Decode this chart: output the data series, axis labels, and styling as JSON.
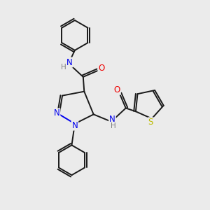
{
  "bg_color": "#ebebeb",
  "bond_color": "#1a1a1a",
  "N_color": "#0000ee",
  "O_color": "#ee0000",
  "S_color": "#bbbb00",
  "H_color": "#808080",
  "linewidth": 1.4,
  "figsize": [
    3.0,
    3.0
  ],
  "dpi": 100,
  "xlim": [
    0,
    10
  ],
  "ylim": [
    0,
    10
  ]
}
